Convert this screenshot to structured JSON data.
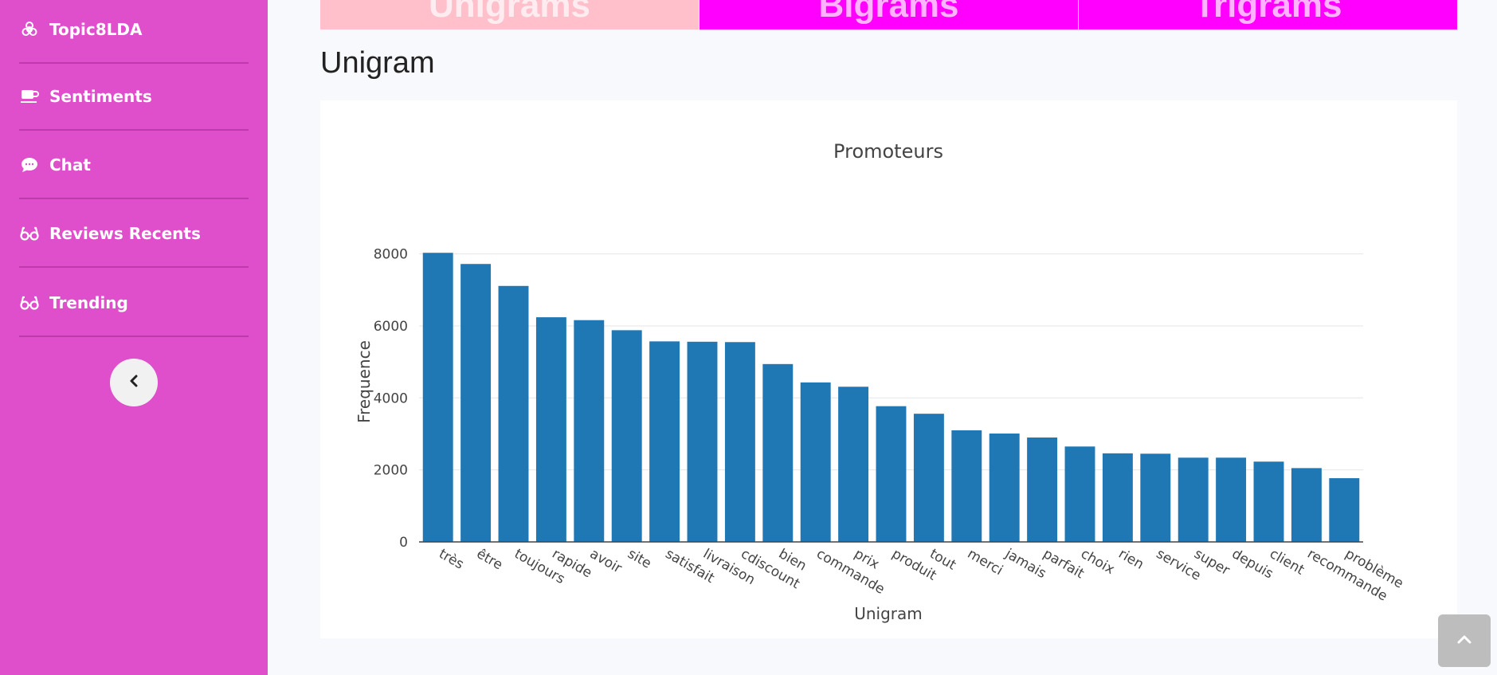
{
  "sidebar": {
    "items": [
      {
        "label": "Topic8LDA",
        "icon": "biohazard-icon"
      },
      {
        "label": "Sentiments",
        "icon": "coffee-cup-icon"
      },
      {
        "label": "Chat",
        "icon": "chat-sms-icon"
      },
      {
        "label": "Reviews Recents",
        "icon": "glasses-icon"
      },
      {
        "label": "Trending",
        "icon": "glasses-icon"
      }
    ],
    "toggle_icon": "chevron-left-icon"
  },
  "tabs": [
    {
      "label": "Unigrams",
      "color": "#ffc0cb",
      "active": true
    },
    {
      "label": "Bigrams",
      "color": "#ff00ff",
      "active": false
    },
    {
      "label": "Trigrams",
      "color": "#ff00ff",
      "active": false
    }
  ],
  "page": {
    "heading": "Unigram"
  },
  "chart_data": {
    "type": "bar",
    "title": "Promoteurs",
    "xlabel": "Unigram",
    "ylabel": "Frequence",
    "ylim": [
      0,
      8500
    ],
    "yticks": [
      0,
      2000,
      4000,
      6000,
      8000
    ],
    "categories": [
      "très",
      "être",
      "toujours",
      "rapide",
      "avoir",
      "site",
      "satisfait",
      "livraison",
      "cdiscount",
      "bien",
      "commande",
      "prix",
      "produit",
      "tout",
      "merci",
      "jamais",
      "parfait",
      "choix",
      "rien",
      "service",
      "super",
      "depuis",
      "client",
      "recommande",
      "problème"
    ],
    "values": [
      8030,
      7720,
      7110,
      6240,
      6160,
      5880,
      5570,
      5560,
      5550,
      4940,
      4430,
      4310,
      3770,
      3560,
      3100,
      3010,
      2900,
      2650,
      2460,
      2450,
      2340,
      2340,
      2230,
      2050,
      1770
    ],
    "bar_color": "#1f77b4",
    "grid": true
  },
  "scroll_top": {
    "icon": "chevron-up-icon"
  }
}
